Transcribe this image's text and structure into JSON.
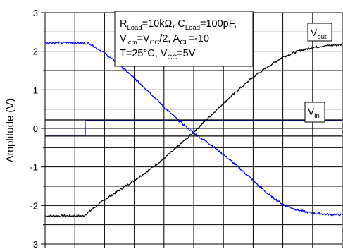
{
  "chart_data": {
    "type": "line",
    "xlabel": "",
    "ylabel": "Amplitude (V)",
    "ylim": [
      -3,
      3
    ],
    "yticks": [
      "3",
      "2",
      "1",
      "0",
      "-1",
      "-2",
      "-3"
    ],
    "x_divisions": 10,
    "grid": true,
    "annotation": {
      "line1": {
        "a": "R",
        "a_sub": "Load",
        "b": "=10kΩ, C",
        "b_sub": "Load",
        "c": "=100pF,"
      },
      "line2": {
        "a": "V",
        "a_sub": "icm",
        "b": "=V",
        "b_sub": "CC",
        "c": "/2, A",
        "c_sub": "CL",
        "d": "=-10"
      },
      "line3": {
        "a": "T=25°C, V",
        "a_sub": "CC",
        "b": "=5V"
      }
    },
    "series": [
      {
        "name_main": "V",
        "name_sub": "out",
        "color": "#000000",
        "x": [
          0,
          0.5,
          1.0,
          1.3,
          1.5,
          2.0,
          2.5,
          3.0,
          3.5,
          4.0,
          4.5,
          5.0,
          5.5,
          6.0,
          6.5,
          7.0,
          7.5,
          8.0,
          8.5,
          9.0,
          9.5,
          10.0
        ],
        "y": [
          -2.27,
          -2.27,
          -2.27,
          -2.27,
          -2.15,
          -1.85,
          -1.6,
          -1.35,
          -1.08,
          -0.78,
          -0.45,
          -0.1,
          0.28,
          0.65,
          1.0,
          1.33,
          1.6,
          1.85,
          2.0,
          2.1,
          2.15,
          2.17
        ]
      },
      {
        "name_main": "V",
        "name_sub": "in",
        "color": "#0000ff",
        "x": [
          0,
          1.35,
          1.35,
          10.0
        ],
        "y": [
          -0.2,
          -0.2,
          0.2,
          0.2
        ]
      },
      {
        "name_main": "",
        "name_sub": "",
        "color": "#0000ff",
        "x": [
          0,
          1.0,
          1.5,
          2.0,
          2.5,
          3.0,
          3.5,
          4.0,
          4.5,
          5.0,
          5.5,
          6.0,
          6.5,
          7.0,
          7.5,
          8.0,
          8.5,
          9.0,
          9.5,
          10.0
        ],
        "y": [
          2.22,
          2.22,
          2.2,
          1.95,
          1.65,
          1.3,
          0.95,
          0.55,
          0.2,
          -0.12,
          -0.38,
          -0.68,
          -1.0,
          -1.35,
          -1.7,
          -1.97,
          -2.12,
          -2.2,
          -2.23,
          -2.24
        ]
      },
      {
        "name_main": "",
        "name_sub": "",
        "color": "#000000",
        "x": [
          0,
          10.0
        ],
        "y": [
          0.22,
          0.22
        ]
      },
      {
        "name_main": "",
        "name_sub": "",
        "color": "#000000",
        "x": [
          0,
          10.0
        ],
        "y": [
          -0.2,
          -0.2
        ]
      }
    ]
  }
}
